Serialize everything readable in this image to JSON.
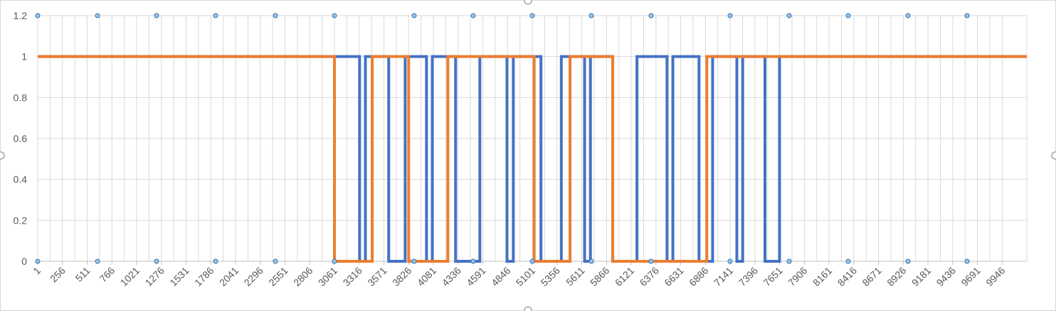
{
  "chart_data": {
    "type": "line",
    "title": "",
    "xlabel": "",
    "ylabel": "",
    "ylim": [
      0,
      1.2
    ],
    "y_ticks": [
      "0",
      "0.2",
      "0.4",
      "0.6",
      "0.8",
      "1",
      "1.2"
    ],
    "x_ticks": [
      "1",
      "256",
      "511",
      "766",
      "1021",
      "1276",
      "1531",
      "1786",
      "2041",
      "2296",
      "2551",
      "2806",
      "3061",
      "3316",
      "3571",
      "3826",
      "4081",
      "4336",
      "4591",
      "4846",
      "5101",
      "5356",
      "5611",
      "5866",
      "6121",
      "6376",
      "6631",
      "6886",
      "7141",
      "7396",
      "7651",
      "7906",
      "8161",
      "8416",
      "8671",
      "8926",
      "9181",
      "9436",
      "9691",
      "9946"
    ],
    "x_range": [
      1,
      10200
    ],
    "grid": true,
    "legend": "none",
    "series": [
      {
        "color": "#4472C4",
        "step_x": [
          1,
          3061,
          3130,
          3320,
          3380,
          3560,
          3620,
          3790,
          3860,
          4010,
          4070,
          4240,
          4310,
          4560,
          4620,
          4840,
          4905,
          5120,
          5190,
          5400,
          5460,
          5640,
          5700,
          5870,
          5930,
          6180,
          6240,
          6490,
          6550,
          6760,
          6820,
          6960,
          7020,
          7210,
          7270,
          7440,
          7500,
          7650,
          10200
        ],
        "step_y": [
          1,
          1,
          1,
          0,
          1,
          1,
          0,
          1,
          1,
          0,
          1,
          1,
          0,
          1,
          1,
          0,
          1,
          1,
          0,
          1,
          1,
          0,
          1,
          1,
          0,
          1,
          1,
          0,
          1,
          1,
          0,
          1,
          1,
          0,
          1,
          1,
          0,
          1,
          1
        ]
      },
      {
        "color": "#ED7D31",
        "step_x": [
          1,
          3061,
          3450,
          3826,
          4230,
          5120,
          5490,
          5930,
          6900,
          10200
        ],
        "step_y": [
          1,
          0,
          1,
          0,
          1,
          0,
          1,
          0,
          1,
          1
        ]
      }
    ]
  }
}
